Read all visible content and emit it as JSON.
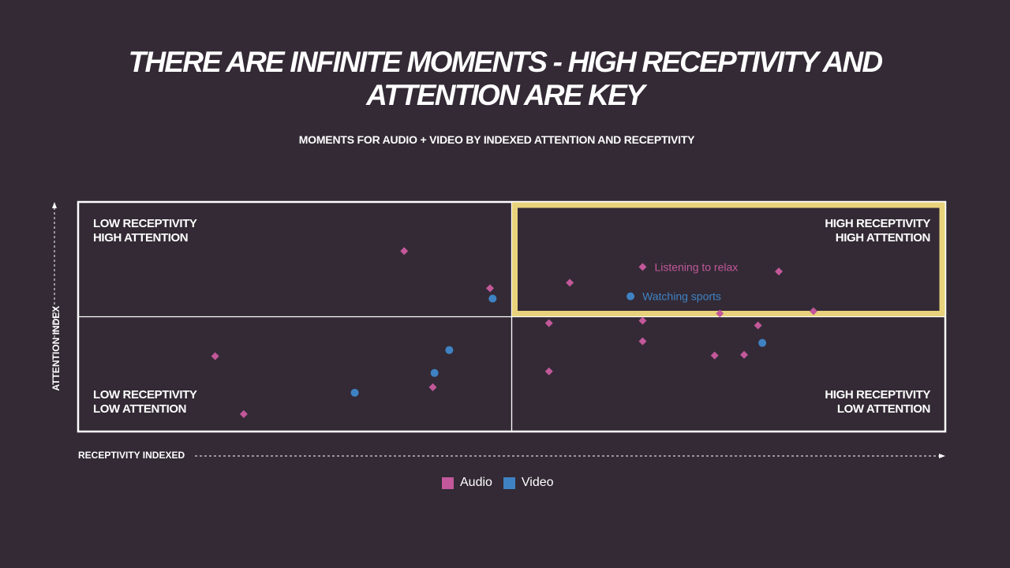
{
  "title_lines": [
    "THERE ARE INFINITE MOMENTS -  HIGH RECEPTIVITY AND",
    "ATTENTION ARE KEY"
  ],
  "subtitle": "MOMENTS FOR AUDIO + VIDEO BY INDEXED ATTENTION AND  RECEPTIVITY",
  "colors": {
    "background": "#332a35",
    "audio": "#c2589a",
    "video": "#3f82c3",
    "highlight": "#e8d37c",
    "grid": "#ffffff"
  },
  "chart_data": {
    "type": "scatter",
    "title": "MOMENTS FOR AUDIO + VIDEO BY INDEXED ATTENTION AND  RECEPTIVITY",
    "xlabel": "RECEPTIVITY INDEXED",
    "ylabel": "ATTENTION INDEX",
    "xlim": [
      0,
      100
    ],
    "ylim": [
      0,
      100
    ],
    "midline": {
      "x": 50,
      "y": 50
    },
    "quadrants": [
      {
        "position": "top-left",
        "lines": [
          "LOW RECEPTIVITY",
          "HIGH ATTENTION"
        ]
      },
      {
        "position": "top-right",
        "lines": [
          "HIGH RECEPTIVITY",
          "HIGH ATTENTION"
        ]
      },
      {
        "position": "bottom-left",
        "lines": [
          "LOW RECEPTIVITY",
          "LOW ATTENTION"
        ]
      },
      {
        "position": "bottom-right",
        "lines": [
          "HIGH RECEPTIVITY",
          "LOW ATTENTION"
        ]
      }
    ],
    "highlight_region": {
      "x": [
        50,
        100
      ],
      "y": [
        50,
        100
      ]
    },
    "series": [
      {
        "name": "Audio",
        "marker": "diamond",
        "points": [
          {
            "x": 37.6,
            "y": 78.6
          },
          {
            "x": 47.5,
            "y": 62.4
          },
          {
            "x": 56.7,
            "y": 64.8
          },
          {
            "x": 65.1,
            "y": 71.7,
            "label": "Listening to relax"
          },
          {
            "x": 80.8,
            "y": 69.7
          },
          {
            "x": 84.8,
            "y": 52.4
          },
          {
            "x": 74.0,
            "y": 51.4
          },
          {
            "x": 54.3,
            "y": 47.2
          },
          {
            "x": 65.1,
            "y": 48.3
          },
          {
            "x": 78.4,
            "y": 46.2
          },
          {
            "x": 65.1,
            "y": 39.3
          },
          {
            "x": 73.4,
            "y": 33.1
          },
          {
            "x": 76.8,
            "y": 33.4
          },
          {
            "x": 54.3,
            "y": 26.2
          },
          {
            "x": 15.8,
            "y": 32.8
          },
          {
            "x": 40.9,
            "y": 19.3
          },
          {
            "x": 19.1,
            "y": 7.6
          }
        ]
      },
      {
        "name": "Video",
        "marker": "circle",
        "points": [
          {
            "x": 47.8,
            "y": 57.9
          },
          {
            "x": 63.7,
            "y": 58.9,
            "label": "Watching sports"
          },
          {
            "x": 42.8,
            "y": 35.5
          },
          {
            "x": 41.1,
            "y": 25.5
          },
          {
            "x": 31.9,
            "y": 16.9
          },
          {
            "x": 78.9,
            "y": 38.6
          }
        ]
      }
    ],
    "legend": {
      "position": "bottom-center",
      "entries": [
        "Audio",
        "Video"
      ]
    }
  }
}
